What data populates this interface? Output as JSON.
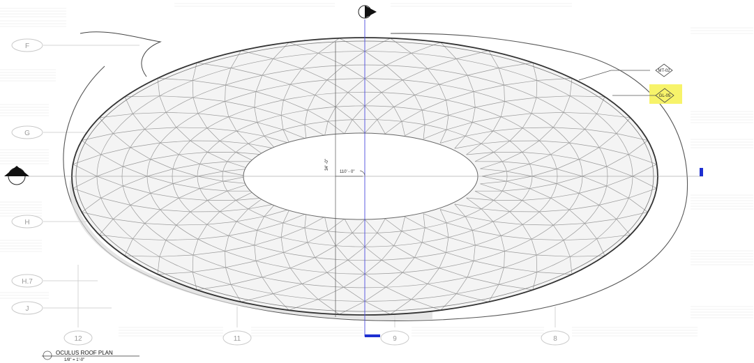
{
  "grid_rows": [
    "F",
    "G",
    "H",
    "H.7",
    "J"
  ],
  "grid_columns": [
    "12",
    "11",
    "9",
    "8"
  ],
  "tags": {
    "material": "MT-02",
    "glazing": "GL-05"
  },
  "dimensions": {
    "horizontal": "110' - 0\"",
    "vertical": "34' -0\""
  },
  "title_block": {
    "name": "OCULUS ROOF PLAN",
    "scale": "1/8\" = 1'-0\""
  },
  "colors": {
    "highlight": "#f7f36a",
    "marker_blue": "#1d2fd1",
    "line": "#333333",
    "faint": "#c9c9c9"
  }
}
